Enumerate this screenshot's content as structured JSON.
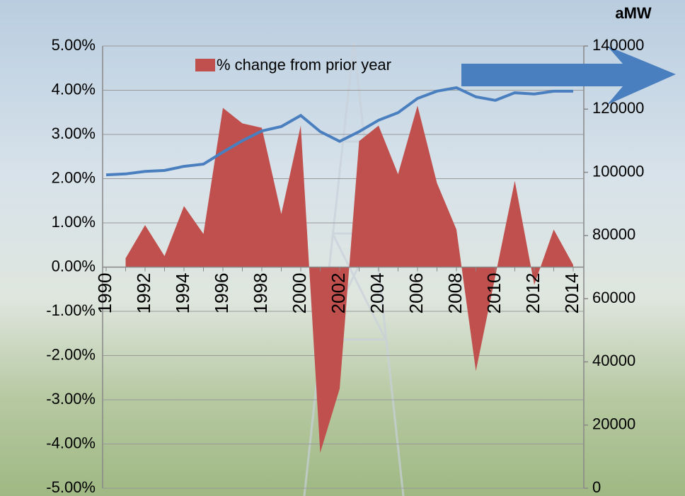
{
  "chart_data": {
    "type": "area-line",
    "y2_label": "aMW",
    "categories": [
      "1990",
      null,
      "1992",
      null,
      "1994",
      null,
      "1996",
      null,
      "1998",
      null,
      "2000",
      null,
      "2002",
      null,
      "2004",
      null,
      "2006",
      null,
      "2008",
      null,
      "2010",
      null,
      "2012",
      null,
      "2014"
    ],
    "series": [
      {
        "name": "% change from prior year",
        "type": "area",
        "color": "#c0504d",
        "values": [
          null,
          0.2,
          0.95,
          0.25,
          1.38,
          0.75,
          3.6,
          3.25,
          3.15,
          1.2,
          3.2,
          -4.2,
          -2.75,
          2.85,
          3.2,
          2.1,
          3.65,
          1.9,
          0.85,
          -2.35,
          -0.2,
          1.95,
          -0.4,
          0.85,
          0.05
        ]
      },
      {
        "type": "line",
        "axis": "y2",
        "color": "#4a7fbf",
        "values": [
          99200,
          99500,
          100300,
          100600,
          101900,
          102600,
          106400,
          110000,
          113100,
          114500,
          118000,
          112900,
          109800,
          112900,
          116500,
          118900,
          123400,
          125700,
          126800,
          123900,
          122800,
          125200,
          124800,
          125700,
          125700
        ]
      }
    ],
    "ylim": [
      -5,
      5
    ],
    "yticks": [
      {
        "value": -5,
        "label": "-5.00%"
      },
      {
        "value": -4,
        "label": "-4.00%"
      },
      {
        "value": -3,
        "label": "-3.00%"
      },
      {
        "value": -2,
        "label": "-2.00%"
      },
      {
        "value": -1,
        "label": "-1.00%"
      },
      {
        "value": 0,
        "label": "0.00%"
      },
      {
        "value": 1,
        "label": "1.00%"
      },
      {
        "value": 2,
        "label": "2.00%"
      },
      {
        "value": 3,
        "label": "3.00%"
      },
      {
        "value": 4,
        "label": "4.00%"
      },
      {
        "value": 5,
        "label": "5.00%"
      }
    ],
    "y2lim": [
      0,
      140000
    ],
    "y2ticks": [
      0,
      20000,
      40000,
      60000,
      80000,
      100000,
      120000,
      140000
    ],
    "grid": true
  }
}
